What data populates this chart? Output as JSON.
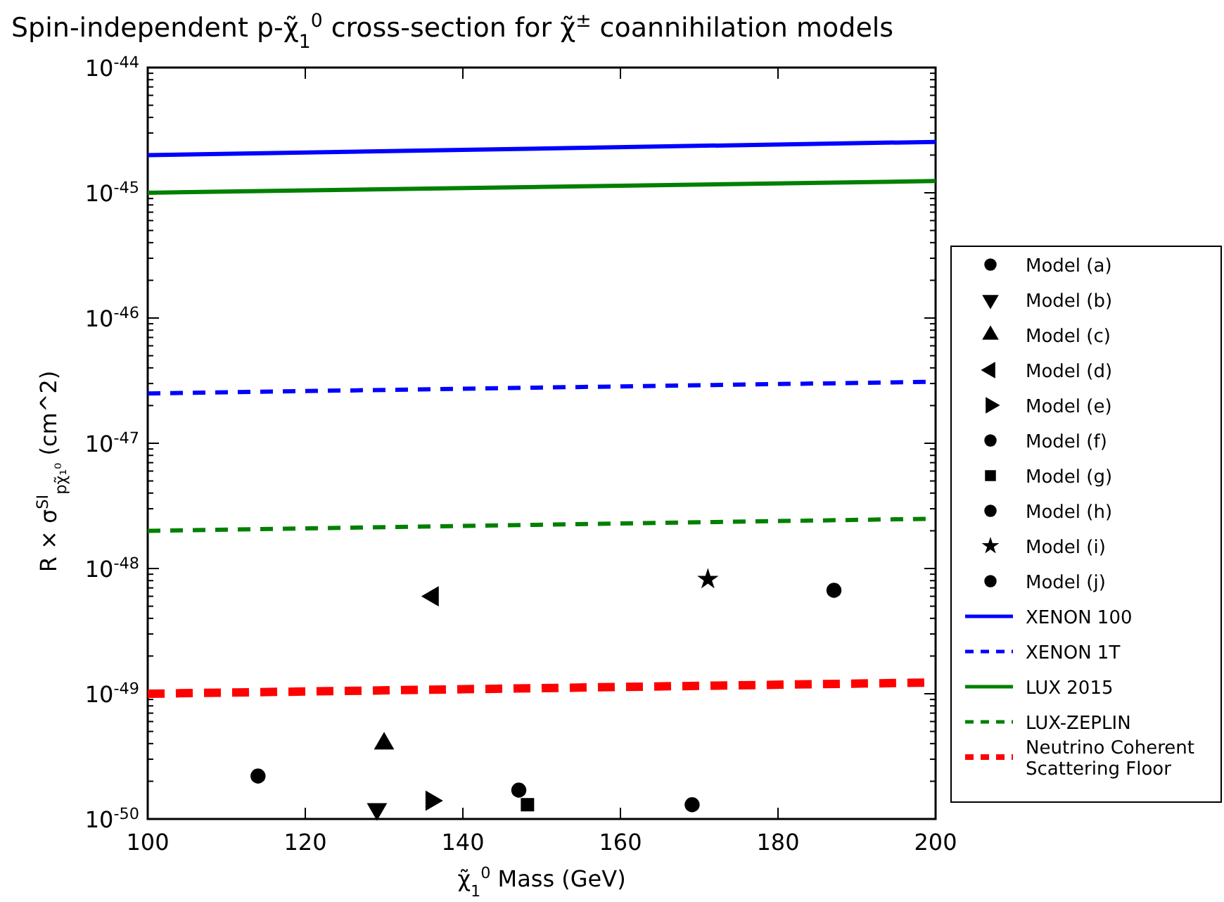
{
  "chart_data": {
    "type": "scatter",
    "title": "Spin-independent p-χ̃$_{1}$$^{0}$ cross-section for χ̃$^{±}$ coannihilation models",
    "xlabel": "χ̃$_{1}$$^{0}$ Mass (GeV)",
    "ylabel": "R × σ$^{SI}$$_{pχ̃₁⁰}$ (cm^2)",
    "xlim": [
      100,
      200
    ],
    "xticks": [
      100,
      120,
      140,
      160,
      180,
      200
    ],
    "ylim": [
      1e-50,
      1e-44
    ],
    "yticks": [
      {
        "value": 1e-50,
        "label": "10$^{-50}$"
      },
      {
        "value": 1e-49,
        "label": "10$^{-49}$"
      },
      {
        "value": 1e-48,
        "label": "10$^{-48}$"
      },
      {
        "value": 1e-47,
        "label": "10$^{-47}$"
      },
      {
        "value": 1e-46,
        "label": "10$^{-46}$"
      },
      {
        "value": 1e-45,
        "label": "10$^{-45}$"
      },
      {
        "value": 1e-44,
        "label": "10$^{-44}$"
      },
      {
        "value": 2e-50,
        "label": null
      },
      {
        "value": 3e-50,
        "label": null
      },
      {
        "value": 4e-50,
        "label": null
      },
      {
        "value": 5e-50,
        "label": null
      },
      {
        "value": 6e-50,
        "label": null
      },
      {
        "value": 7e-50,
        "label": null
      },
      {
        "value": 8e-50,
        "label": null
      },
      {
        "value": 9e-50,
        "label": null
      },
      {
        "value": 2e-49,
        "label": null
      },
      {
        "value": 3e-49,
        "label": null
      },
      {
        "value": 4e-49,
        "label": null
      },
      {
        "value": 5e-49,
        "label": null
      },
      {
        "value": 6e-49,
        "label": null
      },
      {
        "value": 7e-49,
        "label": null
      },
      {
        "value": 8e-49,
        "label": null
      },
      {
        "value": 9e-49,
        "label": null
      },
      {
        "value": 2e-48,
        "label": null
      },
      {
        "value": 3e-48,
        "label": null
      },
      {
        "value": 4e-48,
        "label": null
      },
      {
        "value": 5e-48,
        "label": null
      },
      {
        "value": 6e-48,
        "label": null
      },
      {
        "value": 7e-48,
        "label": null
      },
      {
        "value": 8e-48,
        "label": null
      },
      {
        "value": 9e-48,
        "label": null
      },
      {
        "value": 2e-47,
        "label": null
      },
      {
        "value": 3e-47,
        "label": null
      },
      {
        "value": 4e-47,
        "label": null
      },
      {
        "value": 5e-47,
        "label": null
      },
      {
        "value": 6e-47,
        "label": null
      },
      {
        "value": 7e-47,
        "label": null
      },
      {
        "value": 8e-47,
        "label": null
      },
      {
        "value": 9e-47,
        "label": null
      },
      {
        "value": 2e-46,
        "label": null
      },
      {
        "value": 3e-46,
        "label": null
      },
      {
        "value": 4e-46,
        "label": null
      },
      {
        "value": 5e-46,
        "label": null
      },
      {
        "value": 6e-46,
        "label": null
      },
      {
        "value": 7e-46,
        "label": null
      },
      {
        "value": 8e-46,
        "label": null
      },
      {
        "value": 9e-46,
        "label": null
      },
      {
        "value": 2e-45,
        "label": null
      },
      {
        "value": 3e-45,
        "label": null
      },
      {
        "value": 4e-45,
        "label": null
      },
      {
        "value": 5e-45,
        "label": null
      },
      {
        "value": 6e-45,
        "label": null
      },
      {
        "value": 7e-45,
        "label": null
      },
      {
        "value": 8e-45,
        "label": null
      },
      {
        "value": 9e-45,
        "label": null
      }
    ],
    "log": "y",
    "grid": false,
    "legend": "right",
    "series": [
      {
        "name": "Model (a)",
        "color": "#000000",
        "marker": "circle",
        "x": [
          114
        ],
        "values": [
          2.2e-50
        ]
      },
      {
        "name": "Model (b)",
        "color": "#000000",
        "marker": "triangle-down",
        "x": [
          129.1
        ],
        "values": [
          1.2e-50
        ]
      },
      {
        "name": "Model (c)",
        "color": "#000000",
        "marker": "triangle",
        "x": [
          130
        ],
        "values": [
          4e-50
        ]
      },
      {
        "name": "Model (d)",
        "color": "#000000",
        "marker": "triangle-left",
        "x": [
          136.2
        ],
        "values": [
          6e-49
        ]
      },
      {
        "name": "Model (e)",
        "color": "#000000",
        "marker": "triangle-right",
        "x": [
          136
        ],
        "values": [
          1.4e-50
        ]
      },
      {
        "name": "Model (f)",
        "color": "#000000",
        "marker": "circle",
        "x": [
          147.1
        ],
        "values": [
          1.7e-50
        ]
      },
      {
        "name": "Model (g)",
        "color": "#000000",
        "marker": "square",
        "x": [
          148.2
        ],
        "values": [
          1.3e-50
        ]
      },
      {
        "name": "Model (h)",
        "color": "#000000",
        "marker": "circle",
        "x": [
          169.1
        ],
        "values": [
          1.3e-50
        ]
      },
      {
        "name": "Model (i)",
        "color": "#000000",
        "marker": "star",
        "x": [
          171.1
        ],
        "values": [
          8.2e-49
        ]
      },
      {
        "name": "Model (j)",
        "color": "#000000",
        "marker": "circle",
        "x": [
          187.1
        ],
        "values": [
          6.7e-49
        ]
      },
      {
        "name": "XENON 100",
        "type": "line",
        "color": "#0000ff",
        "line_style": "solid",
        "x": [
          100,
          200
        ],
        "values": [
          2e-45,
          2.55e-45
        ]
      },
      {
        "name": "XENON 1T",
        "type": "line",
        "color": "#0000ff",
        "line_style": "dashed",
        "x": [
          100,
          200
        ],
        "values": [
          2.5e-47,
          3.1e-47
        ]
      },
      {
        "name": "LUX 2015",
        "type": "line",
        "color": "#008000",
        "line_style": "solid",
        "x": [
          100,
          200
        ],
        "values": [
          1e-45,
          1.24e-45
        ]
      },
      {
        "name": "LUX-ZEPLIN",
        "type": "line",
        "color": "#008000",
        "line_style": "dashed",
        "x": [
          100,
          200
        ],
        "values": [
          2e-48,
          2.5e-48
        ]
      },
      {
        "name": "Neutrino Coherent Scattering Floor",
        "type": "line",
        "color": "#ff0000",
        "line_style": "dashed",
        "x": [
          100,
          200
        ],
        "values": [
          1e-49,
          1.23e-49
        ]
      }
    ]
  }
}
